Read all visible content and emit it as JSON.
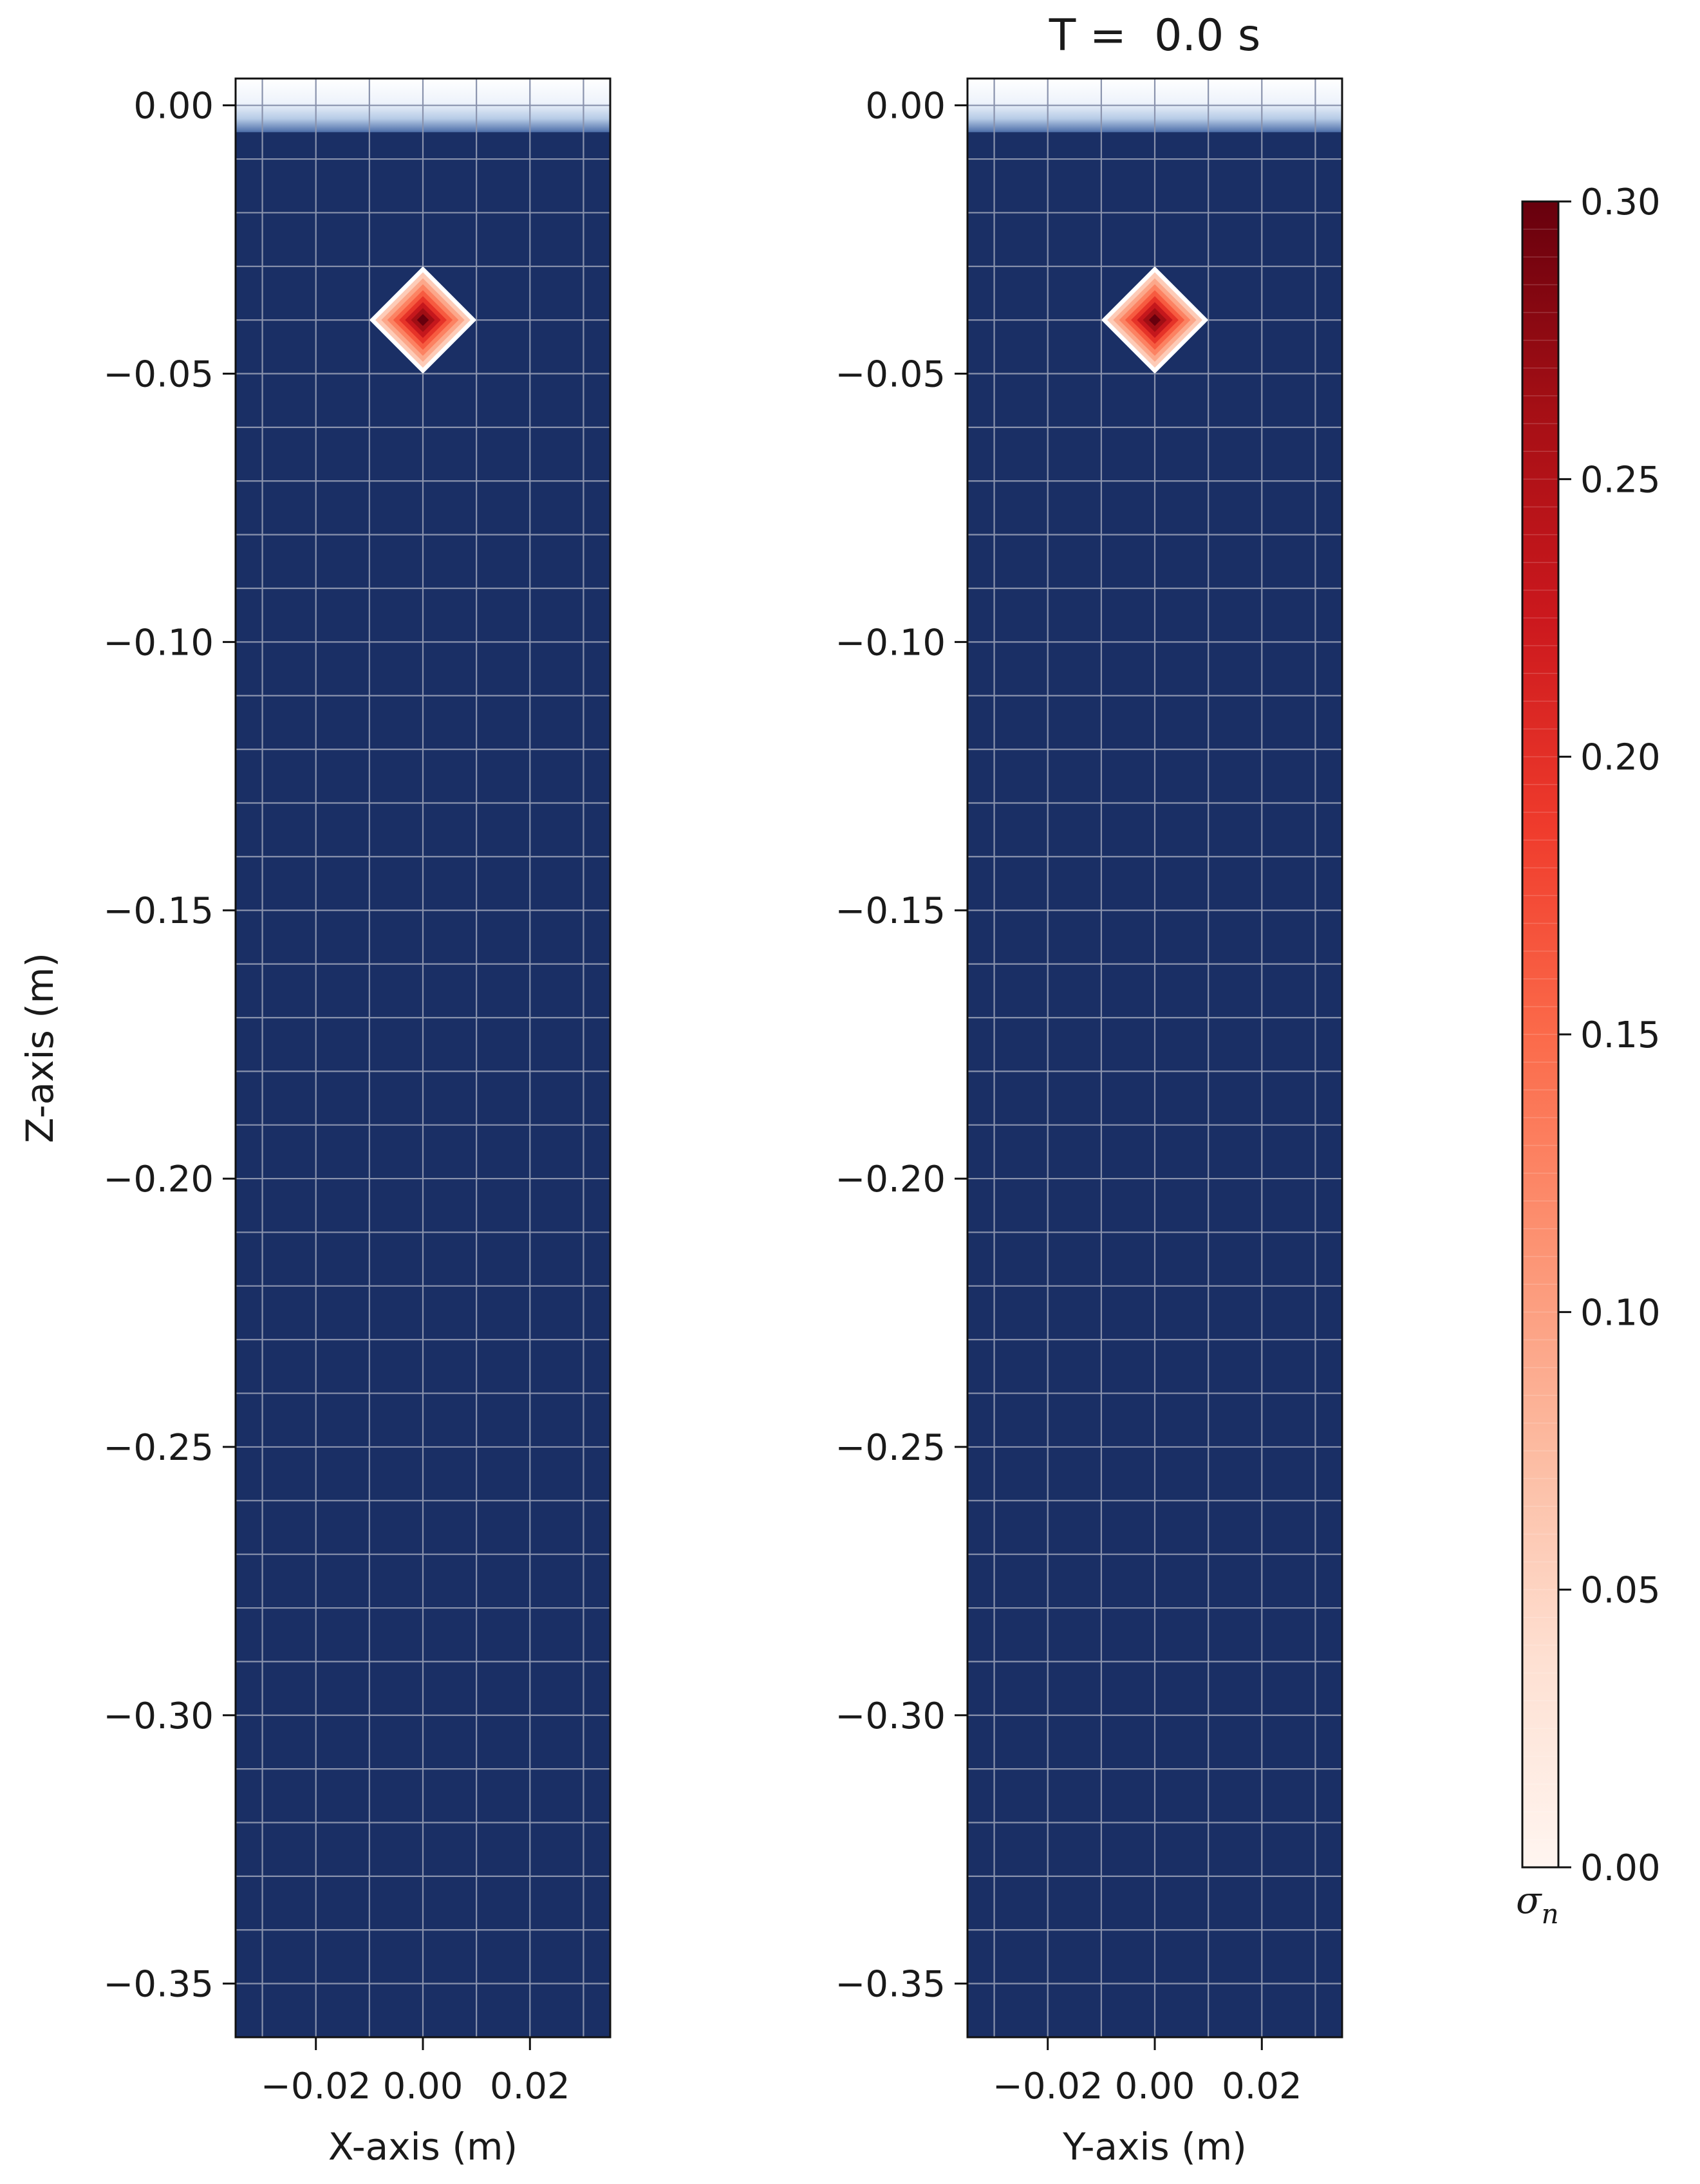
{
  "chart_data": [
    {
      "type": "heatmap",
      "panel": "left",
      "title": "",
      "xlabel": "X-axis (m)",
      "ylabel": "Z-axis (m)",
      "xlim": [
        -0.035,
        0.035
      ],
      "ylim": [
        -0.36,
        0.005
      ],
      "xticks": [
        {
          "value": -0.02,
          "label": "−0.02"
        },
        {
          "value": 0.0,
          "label": "0.00"
        },
        {
          "value": 0.02,
          "label": "0.02"
        }
      ],
      "yticks": [
        {
          "value": 0.0,
          "label": "0.00"
        },
        {
          "value": -0.05,
          "label": "−0.05"
        },
        {
          "value": -0.1,
          "label": "−0.10"
        },
        {
          "value": -0.15,
          "label": "−0.15"
        },
        {
          "value": -0.2,
          "label": "−0.20"
        },
        {
          "value": -0.25,
          "label": "−0.25"
        },
        {
          "value": -0.3,
          "label": "−0.30"
        },
        {
          "value": -0.35,
          "label": "−0.35"
        }
      ],
      "grid": true,
      "grid_spacing": 0.01,
      "background_color": "#1a2f65",
      "surface_band": {
        "from": -0.005,
        "to": 0.005
      },
      "hotspot": {
        "center": [
          0.0,
          -0.04
        ],
        "half_width": 0.01,
        "peak": 0.3
      }
    },
    {
      "type": "heatmap",
      "panel": "right",
      "title": "T =  0.0 s",
      "xlabel": "Y-axis (m)",
      "ylabel": "",
      "xlim": [
        -0.035,
        0.035
      ],
      "ylim": [
        -0.36,
        0.005
      ],
      "xticks": [
        {
          "value": -0.02,
          "label": "−0.02"
        },
        {
          "value": 0.0,
          "label": "0.00"
        },
        {
          "value": 0.02,
          "label": "0.02"
        }
      ],
      "yticks": [
        {
          "value": 0.0,
          "label": "0.00"
        },
        {
          "value": -0.05,
          "label": "−0.05"
        },
        {
          "value": -0.1,
          "label": "−0.10"
        },
        {
          "value": -0.15,
          "label": "−0.15"
        },
        {
          "value": -0.2,
          "label": "−0.20"
        },
        {
          "value": -0.25,
          "label": "−0.25"
        },
        {
          "value": -0.3,
          "label": "−0.30"
        },
        {
          "value": -0.35,
          "label": "−0.35"
        }
      ],
      "grid": true,
      "grid_spacing": 0.01,
      "background_color": "#1a2f65",
      "surface_band": {
        "from": -0.005,
        "to": 0.005
      },
      "hotspot": {
        "center": [
          0.0,
          -0.04
        ],
        "half_width": 0.01,
        "peak": 0.3
      }
    }
  ],
  "colorbar": {
    "colormap": "Reds",
    "range": [
      0.0,
      0.3
    ],
    "ticks": [
      {
        "value": 0.0,
        "label": "0.00"
      },
      {
        "value": 0.05,
        "label": "0.05"
      },
      {
        "value": 0.1,
        "label": "0.10"
      },
      {
        "value": 0.15,
        "label": "0.15"
      },
      {
        "value": 0.2,
        "label": "0.20"
      },
      {
        "value": 0.25,
        "label": "0.25"
      },
      {
        "value": 0.3,
        "label": "0.30"
      }
    ],
    "label_symbol": "σ",
    "label_subscript": "n",
    "colors": [
      "#fff5f0",
      "#fee0d2",
      "#fcbba1",
      "#fc9272",
      "#fb6a4a",
      "#ef3b2c",
      "#cb181d",
      "#a50f15",
      "#67000d"
    ]
  }
}
